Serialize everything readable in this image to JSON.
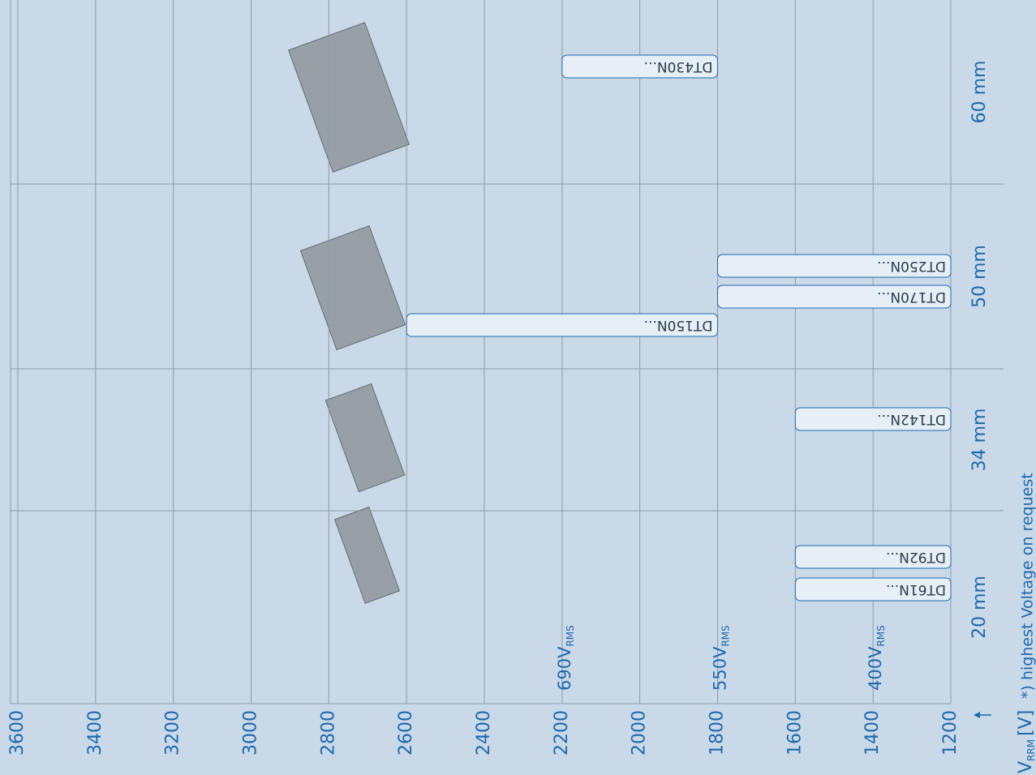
{
  "chart_data": {
    "type": "range-bar",
    "groups": [
      {
        "name": "20 mm",
        "bars": [
          {
            "name": "DT61N...",
            "range": [
              1200,
              1600
            ]
          },
          {
            "name": "DT92N...",
            "range": [
              1200,
              1600
            ]
          }
        ]
      },
      {
        "name": "34 mm",
        "bars": [
          {
            "name": "DT142N...",
            "range": [
              1200,
              1600
            ]
          }
        ]
      },
      {
        "name": "50 mm",
        "bars": [
          {
            "name": "DT150N...",
            "range": [
              1800,
              2600
            ]
          },
          {
            "name": "DT170N...",
            "range": [
              1200,
              1800
            ]
          },
          {
            "name": "DT250N...",
            "range": [
              1200,
              1800
            ]
          }
        ]
      },
      {
        "name": "60 mm",
        "bars": [
          {
            "name": "DT430N...",
            "range": [
              1800,
              2200
            ]
          }
        ]
      }
    ],
    "xlim": [
      3600,
      1200
    ],
    "xticks": [
      3600,
      3400,
      3200,
      3000,
      2800,
      2600,
      2400,
      2200,
      2000,
      1800,
      1600,
      1400,
      1200
    ],
    "annotations": [
      {
        "value": 2200,
        "main": "690V",
        "sub": "RMS"
      },
      {
        "value": 1800,
        "main": "550V",
        "sub": "RMS"
      },
      {
        "value": 1400,
        "main": "400V",
        "sub": "RMS"
      }
    ],
    "axis_label": {
      "main": "V",
      "sub": "RRM",
      "unit": "[V]"
    },
    "footnote": "*) highest Voltage on request",
    "grid": true,
    "bar_color": "#e6eef6",
    "bar_stroke": "#1f69ad",
    "text_color": "#1f69ad"
  }
}
